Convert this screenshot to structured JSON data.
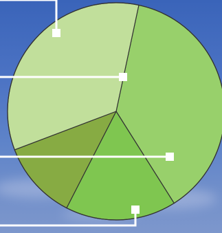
{
  "chart_data": {
    "type": "pie",
    "title": "",
    "slices": [
      {
        "value": 37.7,
        "color": "#98d06b"
      },
      {
        "value": 16.5,
        "color": "#7fc650"
      },
      {
        "value": 11.7,
        "color": "#87ab43"
      },
      {
        "value": 34.1,
        "color": "#c1df9b"
      }
    ],
    "callouts": [
      {
        "slice": 3
      },
      {
        "slice": 0
      },
      {
        "slice": 1
      },
      {
        "slice": 2
      }
    ]
  }
}
